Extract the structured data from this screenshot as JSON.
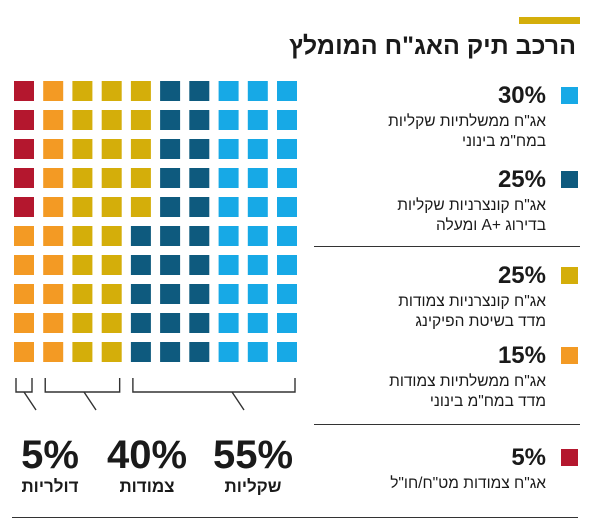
{
  "header": {
    "title": "הרכב תיק האג\"ח המומלץ",
    "accent_color": "#d4ae0a"
  },
  "legend": [
    {
      "pct": "30%",
      "desc": "אג\"ח ממשלתיות שקליות\nבמח\"מ בינוני",
      "color": "#17a9e6"
    },
    {
      "pct": "25%",
      "desc": "אג\"ח קונצרניות שקליות\nבדירוג +A ומעלה",
      "color": "#0e5a7e"
    },
    {
      "pct": "25%",
      "desc": "אג\"ח קונצרניות צמודות\nמדד בשיטת הפיקינג",
      "color": "#d4ae0a"
    },
    {
      "pct": "15%",
      "desc": "אג\"ח ממשלתיות צמודות\nמדד במח\"מ בינוני",
      "color": "#f39a24"
    },
    {
      "pct": "5%",
      "desc": "אג\"ח צמודות מט\"ח/חו\"ל",
      "color": "#b4172e"
    }
  ],
  "chart_data": {
    "type": "waffle",
    "grid": {
      "rows": 10,
      "cols": 10
    },
    "units": "percent",
    "series": [
      {
        "name": "אג\"ח ממשלתיות שקליות במח\"מ בינוני",
        "value": 30,
        "color": "#17a9e6"
      },
      {
        "name": "אג\"ח קונצרניות שקליות בדירוג +A ומעלה",
        "value": 25,
        "color": "#0e5a7e"
      },
      {
        "name": "אג\"ח קונצרניות צמודות מדד בשיטת הפיקינג",
        "value": 25,
        "color": "#d4ae0a"
      },
      {
        "name": "אג\"ח ממשלתיות צמודות מדד במח\"מ בינוני",
        "value": 15,
        "color": "#f39a24"
      },
      {
        "name": "אג\"ח צמודות מט\"ח/חו\"ל",
        "value": 5,
        "color": "#b4172e"
      }
    ],
    "groups": [
      {
        "label": "שקליות",
        "pct": "55%"
      },
      {
        "label": "צמודות",
        "pct": "40%"
      },
      {
        "label": "דולריות",
        "pct": "5%"
      }
    ]
  }
}
